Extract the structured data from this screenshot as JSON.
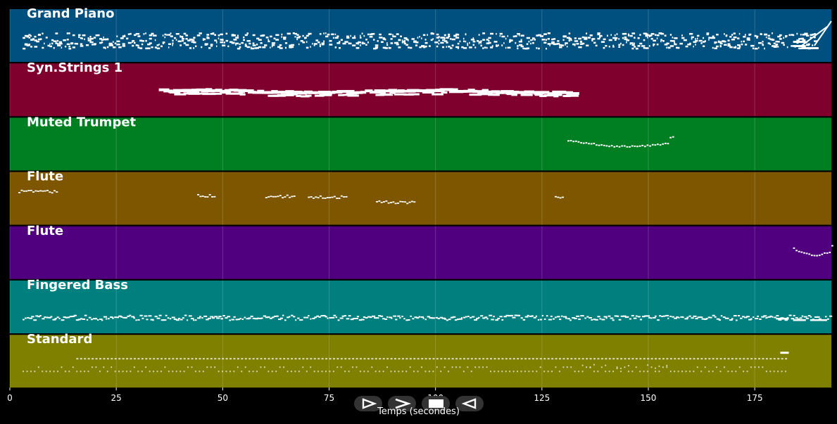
{
  "chart_data": {
    "type": "piano-roll",
    "xlabel": "Temps (secondes)",
    "xlim": [
      0,
      193
    ],
    "xticks": [
      0,
      25,
      50,
      75,
      100,
      125,
      150,
      175
    ],
    "tick_labels": [
      "0",
      "25",
      "50",
      "75",
      "100",
      "125",
      "150",
      "175"
    ],
    "grid": true,
    "tracks": [
      {
        "name": "Grand Piano",
        "color": "#00507f",
        "notes_from": 3,
        "notes_to": 193,
        "style": "dense-high"
      },
      {
        "name": "Syn.Strings 1",
        "color": "#7f002c",
        "notes_from": 35,
        "notes_to": 131,
        "style": "sustained-band"
      },
      {
        "name": "Muted Trumpet",
        "color": "#007f22",
        "notes_from": 131,
        "notes_to": 156,
        "style": "melody-dip"
      },
      {
        "name": "Flute",
        "color": "#7f5600",
        "segments": [
          [
            2,
            11
          ],
          [
            44,
            48
          ],
          [
            60,
            67
          ],
          [
            70,
            79
          ],
          [
            86,
            95
          ],
          [
            128,
            130
          ]
        ],
        "style": "phrases"
      },
      {
        "name": "Flute",
        "color": "#50007f",
        "notes_from": 184,
        "notes_to": 193,
        "style": "melody-dip"
      },
      {
        "name": "Fingered Bass",
        "color": "#007f7f",
        "notes_from": 3,
        "notes_to": 193,
        "style": "bassline"
      },
      {
        "name": "Standard",
        "color": "#7f7f00",
        "notes_from": 3,
        "notes_to": 183,
        "style": "drums"
      }
    ]
  },
  "controls": {
    "play_icon": "play-icon",
    "fast_forward_icon": "fast-forward-icon",
    "stop_icon": "stop-icon",
    "rewind_icon": "rewind-icon"
  }
}
